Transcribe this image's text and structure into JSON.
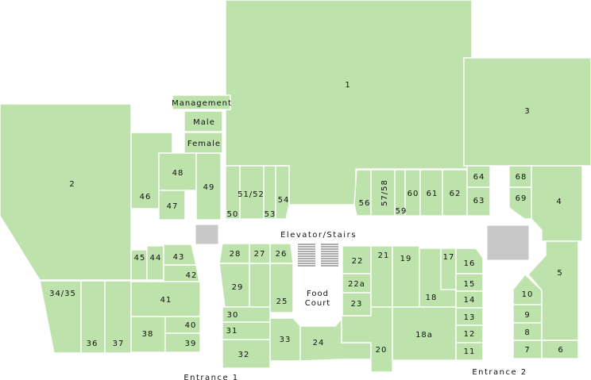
{
  "colors": {
    "store": "#bde2ab",
    "service": "#c8c8c8",
    "background": "#ffffff"
  },
  "stores": {
    "s1": "1",
    "s2": "2",
    "s3": "3",
    "s4": "4",
    "s5": "5",
    "s6": "6",
    "s7": "7",
    "s8": "8",
    "s9": "9",
    "s10": "10",
    "s11": "11",
    "s12": "12",
    "s13": "13",
    "s14": "14",
    "s15": "15",
    "s16": "16",
    "s17": "17",
    "s18": "18",
    "s18a": "18a",
    "s19": "19",
    "s20": "20",
    "s21": "21",
    "s22": "22",
    "s22a": "22a",
    "s23": "23",
    "s24": "24",
    "s25": "25",
    "s26": "26",
    "s27": "27",
    "s28": "28",
    "s29": "29",
    "s30": "30",
    "s31": "31",
    "s32": "32",
    "s33": "33",
    "s3435": "34/35",
    "s36": "36",
    "s37": "37",
    "s38": "38",
    "s39": "39",
    "s40": "40",
    "s41": "41",
    "s42": "42",
    "s43": "43",
    "s44": "44",
    "s45": "45",
    "s46": "46",
    "s47": "47",
    "s48": "48",
    "s49": "49",
    "s50": "50",
    "s5152": "51/52",
    "s53": "53",
    "s54": "54",
    "s56": "56",
    "s5758": "57/58",
    "s59": "59",
    "s60": "60",
    "s61": "61",
    "s62": "62",
    "s63": "63",
    "s64": "64",
    "s68": "68",
    "s69": "69"
  },
  "facilities": {
    "management": "Management",
    "male": "Male",
    "female": "Female",
    "elevator_stairs": "Elevator/Stairs",
    "food_court_line1": "Food",
    "food_court_line2": "Court"
  },
  "entrances": {
    "entrance1": "Entrance 1",
    "entrance2": "Entrance 2"
  }
}
